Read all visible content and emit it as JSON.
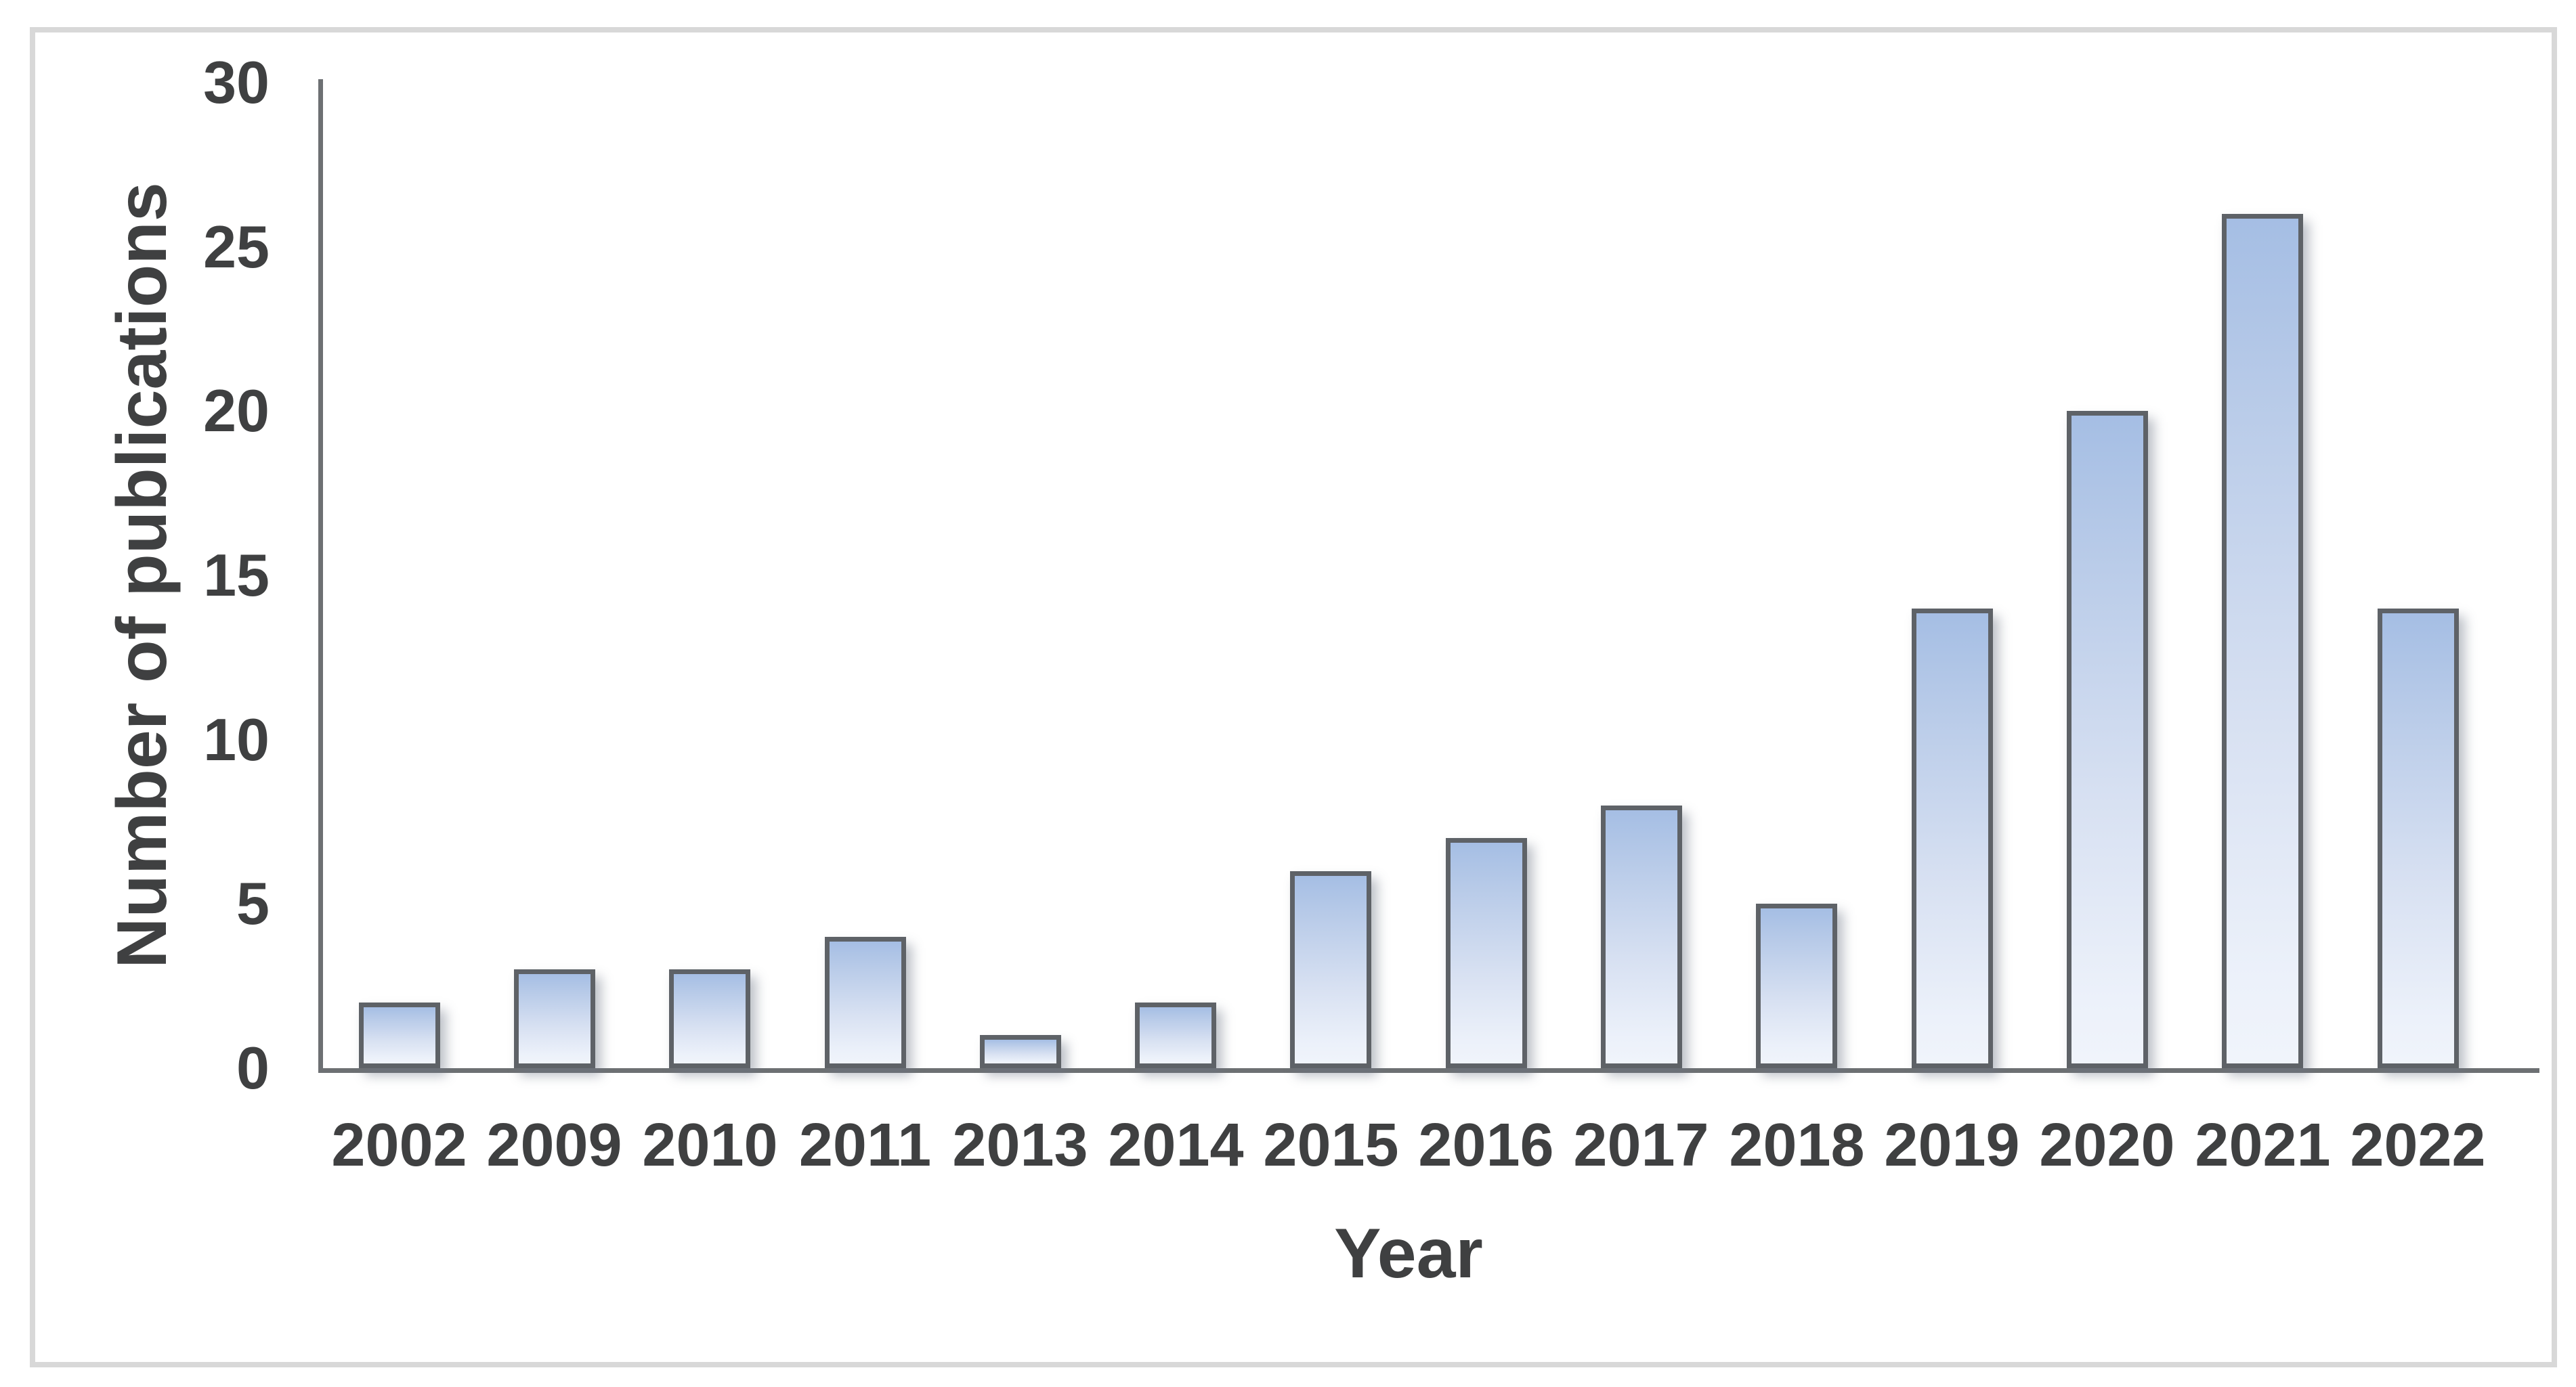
{
  "chart_data": {
    "type": "bar",
    "title": "",
    "xlabel": "Year",
    "ylabel": "Number of publications",
    "categories": [
      "2002",
      "2009",
      "2010",
      "2011",
      "2013",
      "2014",
      "2015",
      "2016",
      "2017",
      "2018",
      "2019",
      "2020",
      "2021",
      "2022"
    ],
    "values": [
      2,
      3,
      3,
      4,
      1,
      2,
      6,
      7,
      8,
      5,
      14,
      20,
      26,
      14
    ],
    "ylim": [
      0,
      30
    ],
    "yticks": [
      0,
      5,
      10,
      15,
      20,
      25,
      30
    ],
    "grid": false,
    "legend_position": "none"
  },
  "colors": {
    "background": "#ffffff",
    "frame_border": "#d8d8d8",
    "axis_line": "#6d7073",
    "bar_border": "#5e6267",
    "bar_gradient_top": "#a5bee4",
    "bar_gradient_bottom": "#f0f4fb",
    "text": "#3f4041"
  }
}
